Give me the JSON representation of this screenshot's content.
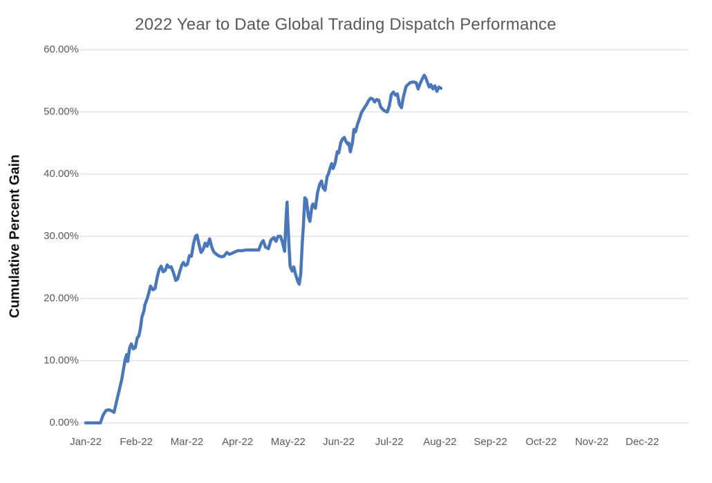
{
  "chart_data": {
    "type": "line",
    "title": "2022 Year to Date Global Trading Dispatch Performance",
    "xlabel": "",
    "ylabel": "Cumulative Percent Gain",
    "legend": "none",
    "grid": "horizontal",
    "background_color": "#ffffff",
    "gridline_color": "#d6d6d6",
    "title_color": "#595959",
    "tick_label_color": "#595959",
    "line_color": "#4a77b7",
    "ylim": [
      0,
      60
    ],
    "y_ticks": {
      "values": [
        0,
        10,
        20,
        30,
        40,
        50,
        60
      ],
      "labels": [
        "0.00%",
        "10.00%",
        "20.00%",
        "30.00%",
        "40.00%",
        "50.00%",
        "60.00%"
      ]
    },
    "x_ticks": {
      "values": [
        0,
        1,
        2,
        3,
        4,
        5,
        6,
        7,
        8,
        9,
        10,
        11
      ],
      "labels": [
        "Jan-22",
        "Feb-22",
        "Mar-22",
        "Apr-22",
        "May-22",
        "Jun-22",
        "Jul-22",
        "Aug-22",
        "Sep-22",
        "Oct-22",
        "Nov-22",
        "Dec-22"
      ]
    },
    "x_unit": "months-since-Jan-2022",
    "series": [
      {
        "name": "Cumulative Percent Gain",
        "points": [
          [
            0.0,
            0.0
          ],
          [
            0.29,
            0.0
          ],
          [
            0.34,
            1.2
          ],
          [
            0.4,
            2.0
          ],
          [
            0.46,
            2.1
          ],
          [
            0.52,
            1.9
          ],
          [
            0.56,
            1.7
          ],
          [
            0.61,
            3.5
          ],
          [
            0.67,
            5.5
          ],
          [
            0.71,
            6.9
          ],
          [
            0.75,
            8.8
          ],
          [
            0.78,
            10.2
          ],
          [
            0.81,
            11.0
          ],
          [
            0.83,
            9.9
          ],
          [
            0.87,
            12.1
          ],
          [
            0.9,
            12.7
          ],
          [
            0.94,
            11.9
          ],
          [
            0.98,
            12.1
          ],
          [
            1.02,
            13.7
          ],
          [
            1.05,
            14.0
          ],
          [
            1.08,
            15.2
          ],
          [
            1.11,
            17.0
          ],
          [
            1.15,
            18.0
          ],
          [
            1.17,
            19.0
          ],
          [
            1.22,
            20.1
          ],
          [
            1.26,
            21.3
          ],
          [
            1.28,
            22.0
          ],
          [
            1.33,
            21.4
          ],
          [
            1.37,
            21.6
          ],
          [
            1.41,
            23.3
          ],
          [
            1.45,
            24.6
          ],
          [
            1.49,
            25.2
          ],
          [
            1.53,
            24.3
          ],
          [
            1.57,
            24.5
          ],
          [
            1.61,
            25.4
          ],
          [
            1.65,
            25.0
          ],
          [
            1.69,
            25.1
          ],
          [
            1.74,
            24.0
          ],
          [
            1.78,
            22.9
          ],
          [
            1.82,
            23.2
          ],
          [
            1.86,
            24.4
          ],
          [
            1.9,
            25.4
          ],
          [
            1.93,
            25.8
          ],
          [
            1.97,
            25.3
          ],
          [
            2.01,
            25.5
          ],
          [
            2.05,
            26.9
          ],
          [
            2.09,
            26.8
          ],
          [
            2.13,
            28.8
          ],
          [
            2.17,
            30.0
          ],
          [
            2.2,
            30.2
          ],
          [
            2.24,
            28.6
          ],
          [
            2.28,
            27.4
          ],
          [
            2.32,
            27.9
          ],
          [
            2.36,
            28.9
          ],
          [
            2.4,
            28.4
          ],
          [
            2.45,
            29.6
          ],
          [
            2.49,
            28.3
          ],
          [
            2.53,
            27.5
          ],
          [
            2.57,
            27.2
          ],
          [
            2.62,
            26.9
          ],
          [
            2.68,
            26.7
          ],
          [
            2.73,
            26.8
          ],
          [
            2.79,
            27.4
          ],
          [
            2.84,
            27.1
          ],
          [
            2.9,
            27.3
          ],
          [
            2.95,
            27.5
          ],
          [
            3.01,
            27.7
          ],
          [
            3.09,
            27.7
          ],
          [
            3.17,
            27.8
          ],
          [
            3.25,
            27.8
          ],
          [
            3.33,
            27.8
          ],
          [
            3.42,
            27.8
          ],
          [
            3.47,
            28.9
          ],
          [
            3.51,
            29.3
          ],
          [
            3.55,
            28.3
          ],
          [
            3.61,
            28.0
          ],
          [
            3.66,
            29.4
          ],
          [
            3.72,
            29.8
          ],
          [
            3.76,
            29.2
          ],
          [
            3.8,
            30.0
          ],
          [
            3.85,
            30.0
          ],
          [
            3.89,
            29.0
          ],
          [
            3.93,
            27.6
          ],
          [
            3.96,
            33.0
          ],
          [
            3.98,
            35.5
          ],
          [
            3.99,
            33.0
          ],
          [
            4.02,
            28.0
          ],
          [
            4.04,
            25.2
          ],
          [
            4.08,
            24.4
          ],
          [
            4.11,
            25.1
          ],
          [
            4.15,
            23.8
          ],
          [
            4.19,
            22.8
          ],
          [
            4.22,
            22.3
          ],
          [
            4.25,
            24.0
          ],
          [
            4.28,
            29.0
          ],
          [
            4.3,
            31.5
          ],
          [
            4.33,
            36.2
          ],
          [
            4.36,
            35.9
          ],
          [
            4.4,
            33.2
          ],
          [
            4.43,
            32.4
          ],
          [
            4.47,
            34.8
          ],
          [
            4.49,
            35.2
          ],
          [
            4.54,
            34.5
          ],
          [
            4.58,
            37.0
          ],
          [
            4.62,
            38.3
          ],
          [
            4.66,
            38.9
          ],
          [
            4.69,
            37.8
          ],
          [
            4.73,
            37.4
          ],
          [
            4.77,
            39.6
          ],
          [
            4.8,
            40.1
          ],
          [
            4.82,
            40.7
          ],
          [
            4.86,
            41.7
          ],
          [
            4.89,
            40.9
          ],
          [
            4.93,
            41.8
          ],
          [
            4.97,
            43.6
          ],
          [
            5.0,
            43.4
          ],
          [
            5.04,
            45.0
          ],
          [
            5.07,
            45.6
          ],
          [
            5.11,
            45.9
          ],
          [
            5.14,
            45.3
          ],
          [
            5.18,
            44.8
          ],
          [
            5.2,
            45.0
          ],
          [
            5.23,
            43.6
          ],
          [
            5.27,
            45.0
          ],
          [
            5.3,
            47.2
          ],
          [
            5.33,
            46.8
          ],
          [
            5.37,
            48.0
          ],
          [
            5.41,
            48.9
          ],
          [
            5.45,
            49.9
          ],
          [
            5.51,
            50.7
          ],
          [
            5.55,
            51.2
          ],
          [
            5.59,
            51.8
          ],
          [
            5.63,
            52.2
          ],
          [
            5.67,
            52.1
          ],
          [
            5.71,
            51.6
          ],
          [
            5.75,
            52.0
          ],
          [
            5.79,
            51.9
          ],
          [
            5.83,
            50.8
          ],
          [
            5.87,
            50.4
          ],
          [
            5.92,
            50.1
          ],
          [
            5.96,
            50.0
          ],
          [
            6.0,
            51.0
          ],
          [
            6.04,
            52.8
          ],
          [
            6.08,
            53.2
          ],
          [
            6.12,
            52.7
          ],
          [
            6.16,
            52.9
          ],
          [
            6.2,
            51.2
          ],
          [
            6.24,
            50.7
          ],
          [
            6.28,
            52.5
          ],
          [
            6.33,
            54.1
          ],
          [
            6.37,
            54.4
          ],
          [
            6.41,
            54.7
          ],
          [
            6.45,
            54.8
          ],
          [
            6.49,
            54.8
          ],
          [
            6.53,
            54.7
          ],
          [
            6.57,
            53.7
          ],
          [
            6.61,
            54.6
          ],
          [
            6.65,
            55.3
          ],
          [
            6.69,
            55.9
          ],
          [
            6.72,
            55.5
          ],
          [
            6.75,
            54.8
          ],
          [
            6.79,
            54.0
          ],
          [
            6.82,
            54.4
          ],
          [
            6.86,
            53.7
          ],
          [
            6.9,
            54.2
          ],
          [
            6.94,
            53.3
          ],
          [
            6.98,
            54.0
          ],
          [
            7.02,
            53.8
          ]
        ]
      }
    ]
  }
}
